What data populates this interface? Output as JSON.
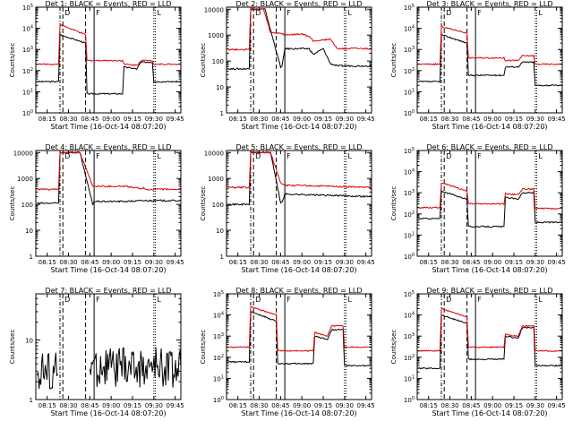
{
  "figure": {
    "xlabel": "Start Time (16-Oct-14 08:07:20)",
    "ylabel": "Counts/sec",
    "xticks": [
      "08:15",
      "08:30",
      "08:45",
      "09:00",
      "09:15",
      "09:30",
      "09:45"
    ],
    "colors": {
      "events": "#000000",
      "lld": "#e00000",
      "axes": "#000000"
    }
  },
  "chart_data": [
    {
      "type": "line",
      "title": "Det 1: BLACK = Events, RED = LLD",
      "xlabel": "Start Time (16-Oct-14 08:07:20)",
      "ylabel": "Counts/sec",
      "log_y": true,
      "yticks": [
        "10^0",
        "10^1",
        "10^2",
        "10^3",
        "10^4",
        "10^5"
      ],
      "ylim": [
        1,
        100000
      ],
      "xlim": [
        "08:07",
        "09:49"
      ],
      "markers": [
        {
          "label": "D",
          "time": "08:26"
        },
        {
          "label": "F",
          "time": "08:48"
        },
        {
          "label": "L",
          "time": "09:31"
        }
      ],
      "series": [
        {
          "name": "Events",
          "color": "#000000",
          "x": [
            "08:08",
            "08:23",
            "08:24",
            "08:42",
            "08:43",
            "09:08",
            "09:09",
            "09:18",
            "09:21",
            "09:29",
            "09:30",
            "09:49"
          ],
          "y": [
            30,
            30,
            5000,
            2000,
            8,
            8,
            150,
            120,
            250,
            250,
            30,
            30
          ]
        },
        {
          "name": "LLD",
          "color": "#e00000",
          "x": [
            "08:08",
            "08:23",
            "08:24",
            "08:42",
            "08:43",
            "09:08",
            "09:09",
            "09:18",
            "09:21",
            "09:29",
            "09:30",
            "09:49"
          ],
          "y": [
            200,
            200,
            15000,
            5000,
            300,
            300,
            200,
            180,
            300,
            300,
            200,
            200
          ]
        }
      ]
    },
    {
      "type": "line",
      "title": "Det 2: BLACK = Events, RED = LLD",
      "xlabel": "Start Time (16-Oct-14 08:07:20)",
      "ylabel": "Counts/sec",
      "log_y": true,
      "yticks": [
        "1",
        "10",
        "100",
        "1000",
        "10000"
      ],
      "ylim": [
        1,
        12000
      ],
      "xlim": [
        "08:07",
        "09:49"
      ],
      "markers": [
        {
          "label": "D",
          "time": "08:26"
        },
        {
          "label": "F",
          "time": "08:48"
        },
        {
          "label": "L",
          "time": "09:31"
        }
      ],
      "series": [
        {
          "name": "Events",
          "color": "#000000",
          "x": [
            "08:08",
            "08:23",
            "08:24",
            "08:34",
            "08:45",
            "08:46",
            "08:48",
            "09:05",
            "09:08",
            "09:15",
            "09:20",
            "09:25",
            "09:49"
          ],
          "y": [
            50,
            50,
            10000,
            10000,
            60,
            60,
            300,
            300,
            180,
            300,
            80,
            65,
            65
          ]
        },
        {
          "name": "LLD",
          "color": "#e00000",
          "x": [
            "08:08",
            "08:23",
            "08:24",
            "08:33",
            "08:38",
            "08:45",
            "08:48",
            "09:00",
            "09:05",
            "09:08",
            "09:20",
            "09:25",
            "09:49"
          ],
          "y": [
            280,
            280,
            10000,
            10000,
            1200,
            1200,
            1000,
            1100,
            900,
            600,
            700,
            300,
            300
          ]
        }
      ]
    },
    {
      "type": "line",
      "title": "Det 3: BLACK = Events, RED = LLD",
      "xlabel": "Start Time (16-Oct-14 08:07:20)",
      "ylabel": "Counts/sec",
      "log_y": true,
      "yticks": [
        "10^0",
        "10^1",
        "10^2",
        "10^3",
        "10^4",
        "10^5"
      ],
      "ylim": [
        1,
        100000
      ],
      "xlim": [
        "08:07",
        "09:49"
      ],
      "markers": [
        {
          "label": "D",
          "time": "08:26"
        },
        {
          "label": "F",
          "time": "08:48"
        },
        {
          "label": "L",
          "time": "09:31"
        }
      ],
      "series": [
        {
          "name": "Events",
          "color": "#000000",
          "x": [
            "08:08",
            "08:23",
            "08:24",
            "08:42",
            "08:43",
            "09:08",
            "09:09",
            "09:18",
            "09:21",
            "09:29",
            "09:30",
            "09:49"
          ],
          "y": [
            30,
            30,
            5000,
            2000,
            60,
            60,
            150,
            150,
            250,
            250,
            20,
            20
          ]
        },
        {
          "name": "LLD",
          "color": "#e00000",
          "x": [
            "08:08",
            "08:23",
            "08:24",
            "08:42",
            "08:43",
            "09:08",
            "09:09",
            "09:18",
            "09:21",
            "09:29",
            "09:30",
            "09:49"
          ],
          "y": [
            200,
            200,
            12000,
            6000,
            400,
            400,
            300,
            300,
            500,
            500,
            200,
            200
          ]
        }
      ]
    },
    {
      "type": "line",
      "title": "Det 4: BLACK = Events, RED = LLD",
      "xlabel": "Start Time (16-Oct-14 08:07:20)",
      "ylabel": "Counts/sec",
      "log_y": true,
      "yticks": [
        "1",
        "10",
        "100",
        "1000",
        "10000"
      ],
      "ylim": [
        1,
        12000
      ],
      "xlim": [
        "08:07",
        "09:49"
      ],
      "markers": [
        {
          "label": "D",
          "time": "08:26"
        },
        {
          "label": "F",
          "time": "08:48"
        },
        {
          "label": "L",
          "time": "09:31"
        }
      ],
      "series": [
        {
          "name": "Events",
          "color": "#000000",
          "x": [
            "08:08",
            "08:23",
            "08:24",
            "08:38",
            "08:47",
            "08:48",
            "09:10",
            "09:23",
            "09:24",
            "09:49"
          ],
          "y": [
            110,
            110,
            10000,
            10000,
            100,
            130,
            130,
            140,
            140,
            140
          ]
        },
        {
          "name": "LLD",
          "color": "#e00000",
          "x": [
            "08:08",
            "08:23",
            "08:24",
            "08:38",
            "08:47",
            "09:10",
            "09:22",
            "09:23",
            "09:24",
            "09:49"
          ],
          "y": [
            380,
            380,
            10000,
            10000,
            500,
            500,
            400,
            420,
            380,
            380
          ]
        }
      ]
    },
    {
      "type": "line",
      "title": "Det 5: BLACK = Events, RED = LLD",
      "xlabel": "Start Time (16-Oct-14 08:07:20)",
      "ylabel": "Counts/sec",
      "log_y": true,
      "yticks": [
        "1",
        "10",
        "100",
        "1000",
        "10000"
      ],
      "ylim": [
        1,
        12000
      ],
      "xlim": [
        "08:07",
        "09:49"
      ],
      "markers": [
        {
          "label": "D",
          "time": "08:26"
        },
        {
          "label": "F",
          "time": "08:48"
        },
        {
          "label": "L",
          "time": "09:31"
        }
      ],
      "series": [
        {
          "name": "Events",
          "color": "#000000",
          "x": [
            "08:08",
            "08:23",
            "08:24",
            "08:38",
            "08:45",
            "08:46",
            "08:48",
            "09:49"
          ],
          "y": [
            100,
            100,
            10000,
            10000,
            120,
            120,
            250,
            200
          ]
        },
        {
          "name": "LLD",
          "color": "#e00000",
          "x": [
            "08:08",
            "08:23",
            "08:24",
            "08:38",
            "08:45",
            "08:48",
            "09:20",
            "09:49"
          ],
          "y": [
            450,
            450,
            10000,
            10000,
            700,
            550,
            500,
            450
          ]
        }
      ]
    },
    {
      "type": "line",
      "title": "Det 6: BLACK = Events, RED = LLD",
      "xlabel": "Start Time (16-Oct-14 08:07:20)",
      "ylabel": "Counts/sec",
      "log_y": true,
      "yticks": [
        "10^0",
        "10^1",
        "10^2",
        "10^3",
        "10^4",
        "10^5"
      ],
      "ylim": [
        1,
        100000
      ],
      "xlim": [
        "08:07",
        "09:49"
      ],
      "markers": [
        {
          "label": "D",
          "time": "08:26"
        },
        {
          "label": "F",
          "time": "08:48"
        },
        {
          "label": "L",
          "time": "09:31"
        }
      ],
      "series": [
        {
          "name": "Events",
          "color": "#000000",
          "x": [
            "08:08",
            "08:23",
            "08:24",
            "08:42",
            "08:43",
            "09:08",
            "09:09",
            "09:18",
            "09:21",
            "09:29",
            "09:30",
            "09:49"
          ],
          "y": [
            60,
            60,
            1200,
            500,
            25,
            25,
            600,
            500,
            1000,
            1000,
            40,
            40
          ]
        },
        {
          "name": "LLD",
          "color": "#e00000",
          "x": [
            "08:08",
            "08:23",
            "08:24",
            "08:42",
            "08:43",
            "09:08",
            "09:09",
            "09:18",
            "09:21",
            "09:29",
            "09:30",
            "09:49"
          ],
          "y": [
            200,
            200,
            3000,
            1200,
            300,
            300,
            900,
            800,
            1500,
            1500,
            180,
            180
          ]
        }
      ]
    },
    {
      "type": "line",
      "title": "Det 7: BLACK = Events, RED = LLD",
      "xlabel": "Start Time (16-Oct-14 08:07:20)",
      "ylabel": "Counts/sec",
      "log_y": true,
      "yticks": [
        "1",
        "10"
      ],
      "ylim": [
        1,
        60
      ],
      "xlim": [
        "08:07",
        "09:49"
      ],
      "markers": [
        {
          "label": "D",
          "time": "08:26"
        },
        {
          "label": "F",
          "time": "08:48"
        },
        {
          "label": "L",
          "time": "09:31"
        }
      ],
      "series": [
        {
          "name": "Events",
          "color": "#000000",
          "x": [
            "08:08",
            "08:23",
            "08:24",
            "08:44",
            "08:45",
            "09:49"
          ],
          "y": [
            3,
            3,
            null,
            null,
            3.5,
            3.5
          ],
          "noise": "high"
        }
      ]
    },
    {
      "type": "line",
      "title": "Det 8: BLACK = Events, RED = LLD",
      "xlabel": "Start Time (16-Oct-14 08:07:20)",
      "ylabel": "Counts/sec",
      "log_y": true,
      "yticks": [
        "10^0",
        "10^1",
        "10^2",
        "10^3",
        "10^4",
        "10^5"
      ],
      "ylim": [
        1,
        100000
      ],
      "xlim": [
        "08:07",
        "09:49"
      ],
      "markers": [
        {
          "label": "D",
          "time": "08:26"
        },
        {
          "label": "F",
          "time": "08:48"
        },
        {
          "label": "L",
          "time": "09:31"
        }
      ],
      "series": [
        {
          "name": "Events",
          "color": "#000000",
          "x": [
            "08:08",
            "08:23",
            "08:24",
            "08:42",
            "08:43",
            "09:08",
            "09:09",
            "09:18",
            "09:21",
            "09:29",
            "09:30",
            "09:49"
          ],
          "y": [
            60,
            60,
            15000,
            5000,
            50,
            50,
            1000,
            700,
            2000,
            2000,
            40,
            40
          ]
        },
        {
          "name": "LLD",
          "color": "#e00000",
          "x": [
            "08:08",
            "08:23",
            "08:24",
            "08:42",
            "08:43",
            "09:08",
            "09:09",
            "09:18",
            "09:21",
            "09:29",
            "09:30",
            "09:49"
          ],
          "y": [
            300,
            300,
            25000,
            10000,
            200,
            200,
            1500,
            1000,
            3000,
            3000,
            300,
            300
          ]
        }
      ]
    },
    {
      "type": "line",
      "title": "Det 9: BLACK = Events, RED = LLD",
      "xlabel": "Start Time (16-Oct-14 08:07:20)",
      "ylabel": "Counts/sec",
      "log_y": true,
      "yticks": [
        "10^0",
        "10^1",
        "10^2",
        "10^3",
        "10^4",
        "10^5"
      ],
      "ylim": [
        1,
        100000
      ],
      "xlim": [
        "08:07",
        "09:49"
      ],
      "markers": [
        {
          "label": "D",
          "time": "08:26"
        },
        {
          "label": "F",
          "time": "08:48"
        },
        {
          "label": "L",
          "time": "09:31"
        }
      ],
      "series": [
        {
          "name": "Events",
          "color": "#000000",
          "x": [
            "08:08",
            "08:23",
            "08:24",
            "08:42",
            "08:43",
            "09:08",
            "09:09",
            "09:18",
            "09:21",
            "09:29",
            "09:30",
            "09:49"
          ],
          "y": [
            30,
            30,
            10000,
            4000,
            80,
            80,
            1000,
            800,
            2500,
            2500,
            40,
            40
          ]
        },
        {
          "name": "LLD",
          "color": "#e00000",
          "x": [
            "08:08",
            "08:23",
            "08:24",
            "08:42",
            "08:43",
            "09:08",
            "09:09",
            "09:18",
            "09:21",
            "09:29",
            "09:30",
            "09:49"
          ],
          "y": [
            200,
            200,
            20000,
            8000,
            300,
            300,
            1200,
            1000,
            3000,
            3000,
            200,
            200
          ]
        }
      ]
    }
  ]
}
